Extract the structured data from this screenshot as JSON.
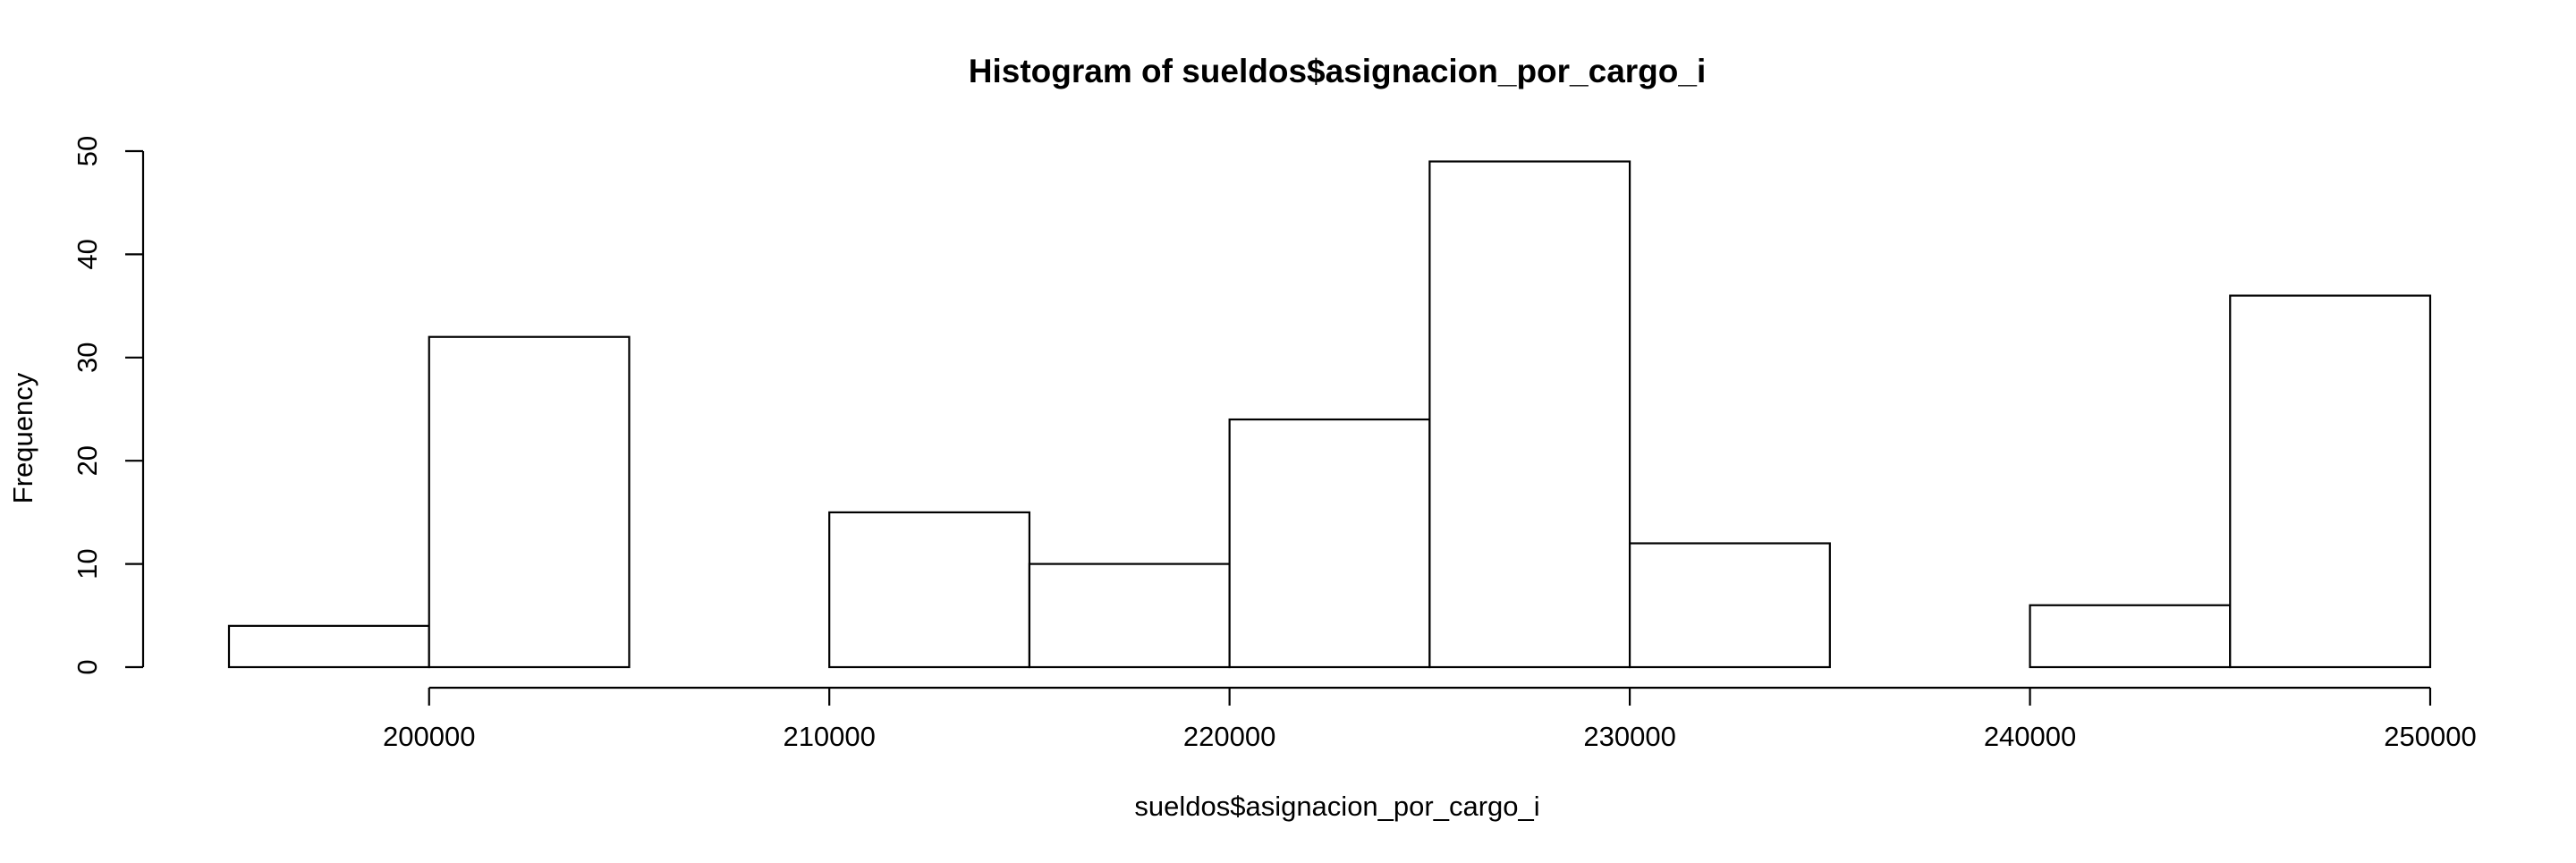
{
  "chart_data": {
    "type": "bar",
    "title": "Histogram of sueldos$asignacion_por_cargo_i",
    "xlabel": "sueldos$asignacion_por_cargo_i",
    "ylabel": "Frequency",
    "bins": [
      {
        "start": 195000,
        "end": 200000,
        "count": 4
      },
      {
        "start": 200000,
        "end": 205000,
        "count": 32
      },
      {
        "start": 205000,
        "end": 210000,
        "count": 0
      },
      {
        "start": 210000,
        "end": 215000,
        "count": 15
      },
      {
        "start": 215000,
        "end": 220000,
        "count": 10
      },
      {
        "start": 220000,
        "end": 225000,
        "count": 24
      },
      {
        "start": 225000,
        "end": 230000,
        "count": 49
      },
      {
        "start": 230000,
        "end": 235000,
        "count": 12
      },
      {
        "start": 235000,
        "end": 240000,
        "count": 0
      },
      {
        "start": 240000,
        "end": 245000,
        "count": 6
      },
      {
        "start": 245000,
        "end": 250000,
        "count": 36
      }
    ],
    "x_ticks": [
      200000,
      210000,
      220000,
      230000,
      240000,
      250000
    ],
    "x_tick_labels": [
      "200000",
      "210000",
      "220000",
      "230000",
      "240000",
      "250000"
    ],
    "y_ticks": [
      0,
      10,
      20,
      30,
      40,
      50
    ],
    "y_tick_labels": [
      "0",
      "10",
      "20",
      "30",
      "40",
      "50"
    ],
    "xlim": [
      195000,
      250000
    ],
    "ylim": [
      0,
      50
    ],
    "grid": false,
    "legend": "none",
    "colors": {
      "bar_fill": "#ffffff",
      "bar_stroke": "#000000",
      "axis": "#000000",
      "text": "#000000"
    }
  }
}
